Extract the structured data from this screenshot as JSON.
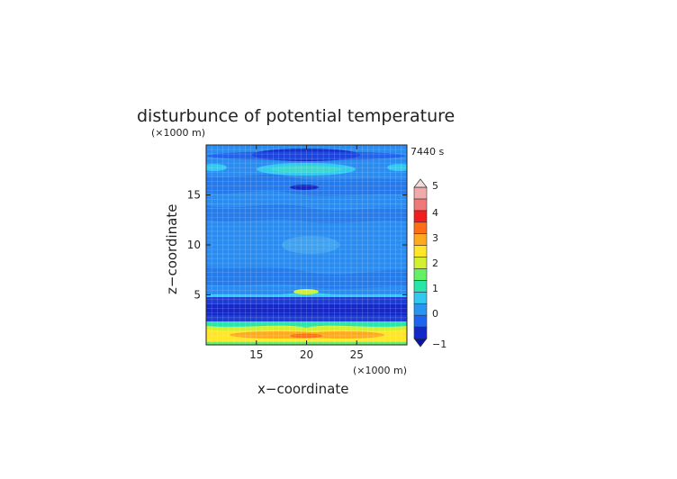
{
  "chart_data": {
    "type": "heatmap",
    "title": "disturbunce of potential temperature",
    "time_label": "7440 s",
    "xlabel": "x−coordinate",
    "ylabel": "z−coordinate",
    "x_unit": "(×1000 m)",
    "y_unit": "(×1000 m)",
    "xlim": [
      10,
      30
    ],
    "ylim": [
      0,
      20
    ],
    "x_ticks": [
      15,
      20,
      25
    ],
    "y_ticks": [
      5,
      10,
      15
    ],
    "grid": true,
    "colorbar": {
      "levels": [
        -1,
        -0.5,
        0,
        0.5,
        1,
        1.5,
        2,
        2.5,
        3,
        3.5,
        4,
        4.5,
        5
      ],
      "labels": [
        "−1",
        "0",
        "1",
        "2",
        "3",
        "4",
        "5"
      ],
      "label_values": [
        -1,
        0,
        1,
        2,
        3,
        4,
        5
      ],
      "colors": [
        "#1428c8",
        "#1e64f0",
        "#2896f0",
        "#32c8f0",
        "#28e6aa",
        "#64f064",
        "#d2f032",
        "#ffe628",
        "#ffaa1e",
        "#ff6e14",
        "#f01e1e",
        "#f07878",
        "#f0aaaa"
      ],
      "extend": "both"
    },
    "fields": [
      {
        "name": "baseline",
        "x": [
          10,
          30
        ],
        "z": [
          0,
          20
        ],
        "value": -0.2
      },
      {
        "name": "top-blue-band",
        "x": [
          10,
          30
        ],
        "z": [
          18.8,
          19.4
        ],
        "value": -0.6
      },
      {
        "name": "upper-cyan-band",
        "x": [
          15,
          25
        ],
        "z": [
          17.3,
          18.1
        ],
        "value": 0.4
      },
      {
        "name": "upper-dark-lens",
        "x": [
          18,
          21
        ],
        "z": [
          15.8,
          16.2
        ],
        "value": -0.8
      },
      {
        "name": "mid-light-blob",
        "x": [
          17,
          23
        ],
        "z": [
          10.5,
          11.6
        ],
        "value": 0.1
      },
      {
        "name": "dark-layer",
        "x": [
          10,
          30
        ],
        "z": [
          2.6,
          5.1
        ],
        "value": -0.9
      },
      {
        "name": "warm-layer",
        "x": [
          10,
          30
        ],
        "z": [
          0.2,
          2.2
        ],
        "value": 2.0
      },
      {
        "name": "warm-core",
        "x": [
          13,
          27
        ],
        "z": [
          0.8,
          1.3
        ],
        "value": 2.7
      }
    ]
  }
}
